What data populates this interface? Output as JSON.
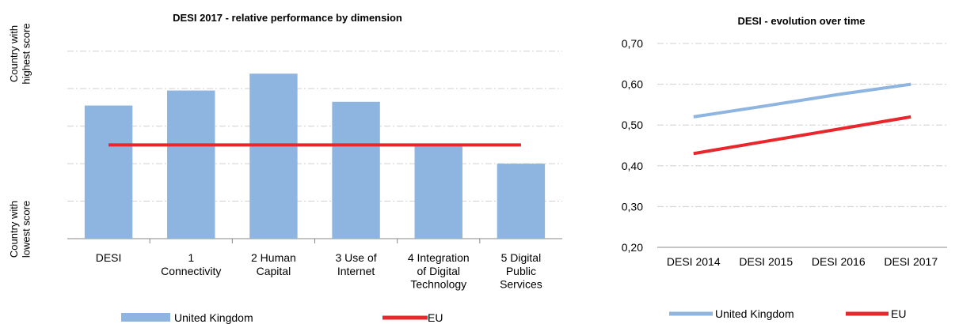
{
  "chart_data": [
    {
      "type": "bar",
      "title": "DESI 2017 -  relative performance by dimension",
      "y_top_label": "Country with highest score",
      "y_bottom_label": "Country with lowest score",
      "categories": [
        "DESI",
        "1 Connectivity",
        "2 Human Capital",
        "3 Use of Internet",
        "4 Integration of Digital Technology",
        "5 Digital Public Services"
      ],
      "series": [
        {
          "name": "United Kingdom",
          "color": "#8eb4e0",
          "values": [
            0.71,
            0.79,
            0.88,
            0.73,
            0.5,
            0.4
          ]
        },
        {
          "name": "EU",
          "color": "#e8262b",
          "type": "line",
          "values": [
            0.5,
            0.5,
            0.5,
            0.5,
            0.5,
            0.5
          ]
        }
      ],
      "ylim": [
        0,
        1.1
      ],
      "gridlines": [
        0.2,
        0.4,
        0.6,
        0.8,
        1.0
      ],
      "grid": true,
      "legend": "bottom"
    },
    {
      "type": "line",
      "title": "DESI - evolution over time",
      "categories": [
        "DESI 2014",
        "DESI 2015",
        "DESI 2016",
        "DESI 2017"
      ],
      "series": [
        {
          "name": "United Kingdom",
          "color": "#8eb4e0",
          "values": [
            0.52,
            0.547,
            0.575,
            0.6
          ]
        },
        {
          "name": "EU",
          "color": "#e8262b",
          "values": [
            0.43,
            0.46,
            0.49,
            0.52
          ]
        }
      ],
      "ylim": [
        0.2,
        0.7
      ],
      "yticks": [
        {
          "value": 0.2,
          "label": "0,20"
        },
        {
          "value": 0.3,
          "label": "0,30"
        },
        {
          "value": 0.4,
          "label": "0,40"
        },
        {
          "value": 0.5,
          "label": "0,50"
        },
        {
          "value": 0.6,
          "label": "0,60"
        },
        {
          "value": 0.7,
          "label": "0,70"
        }
      ],
      "grid": true,
      "legend": "bottom"
    }
  ]
}
